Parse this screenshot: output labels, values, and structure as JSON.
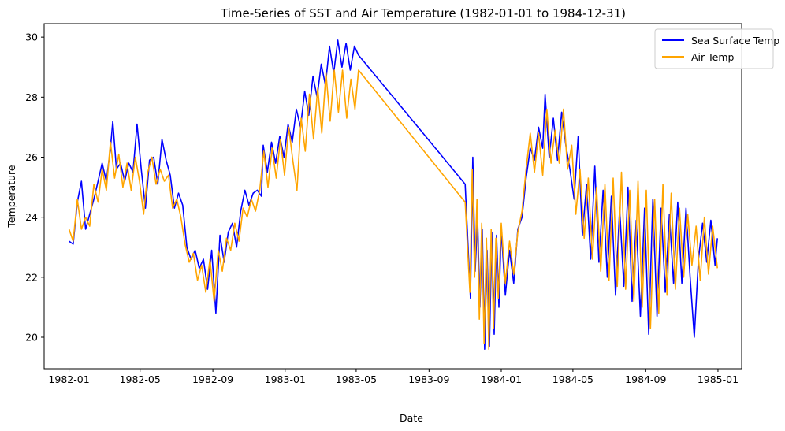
{
  "chart_data": {
    "type": "line",
    "title": "Time-Series of SST and Air Temperature (1982-01-01 to 1984-12-31)",
    "xlabel": "Date",
    "ylabel": "Temperature",
    "xlim": [
      "1981-11-20",
      "1985-02-10"
    ],
    "ylim": [
      18.95,
      30.45
    ],
    "x_ticks": [
      "1982-01",
      "1982-05",
      "1982-09",
      "1983-01",
      "1983-05",
      "1983-09",
      "1984-01",
      "1984-05",
      "1984-09",
      "1985-01"
    ],
    "y_ticks": [
      20,
      22,
      24,
      26,
      28,
      30
    ],
    "grid": false,
    "legend": "top-right",
    "series": [
      {
        "name": "Sea Surface Temp",
        "color": "#0000ff",
        "points": [
          [
            "1982-01-01",
            23.2
          ],
          [
            "1982-01-08",
            23.1
          ],
          [
            "1982-01-15",
            24.5
          ],
          [
            "1982-01-22",
            25.2
          ],
          [
            "1982-01-29",
            23.6
          ],
          [
            "1982-02-05",
            24.1
          ],
          [
            "1982-02-12",
            24.6
          ],
          [
            "1982-02-19",
            25.2
          ],
          [
            "1982-02-26",
            25.8
          ],
          [
            "1982-03-05",
            25.2
          ],
          [
            "1982-03-12",
            26.3
          ],
          [
            "1982-03-16",
            27.2
          ],
          [
            "1982-03-22",
            25.6
          ],
          [
            "1982-03-29",
            25.8
          ],
          [
            "1982-04-05",
            25.2
          ],
          [
            "1982-04-12",
            25.8
          ],
          [
            "1982-04-19",
            25.5
          ],
          [
            "1982-04-26",
            27.1
          ],
          [
            "1982-05-03",
            25.6
          ],
          [
            "1982-05-10",
            24.3
          ],
          [
            "1982-05-17",
            25.9
          ],
          [
            "1982-05-24",
            26.0
          ],
          [
            "1982-05-31",
            25.1
          ],
          [
            "1982-06-07",
            26.6
          ],
          [
            "1982-06-14",
            25.9
          ],
          [
            "1982-06-21",
            25.4
          ],
          [
            "1982-06-28",
            24.3
          ],
          [
            "1982-07-05",
            24.8
          ],
          [
            "1982-07-12",
            24.4
          ],
          [
            "1982-07-19",
            23.0
          ],
          [
            "1982-07-26",
            22.6
          ],
          [
            "1982-08-02",
            22.9
          ],
          [
            "1982-08-09",
            22.3
          ],
          [
            "1982-08-16",
            22.6
          ],
          [
            "1982-08-23",
            21.6
          ],
          [
            "1982-08-30",
            22.9
          ],
          [
            "1982-09-06",
            20.8
          ],
          [
            "1982-09-13",
            23.4
          ],
          [
            "1982-09-20",
            22.5
          ],
          [
            "1982-09-27",
            23.5
          ],
          [
            "1982-10-04",
            23.8
          ],
          [
            "1982-10-11",
            23.0
          ],
          [
            "1982-10-18",
            24.2
          ],
          [
            "1982-10-25",
            24.9
          ],
          [
            "1982-11-01",
            24.4
          ],
          [
            "1982-11-08",
            24.8
          ],
          [
            "1982-11-15",
            24.9
          ],
          [
            "1982-11-22",
            24.7
          ],
          [
            "1982-11-25",
            26.4
          ],
          [
            "1982-12-02",
            25.5
          ],
          [
            "1982-12-09",
            26.5
          ],
          [
            "1982-12-16",
            25.8
          ],
          [
            "1982-12-23",
            26.7
          ],
          [
            "1982-12-30",
            26.0
          ],
          [
            "1983-01-06",
            27.1
          ],
          [
            "1983-01-13",
            26.5
          ],
          [
            "1983-01-20",
            27.6
          ],
          [
            "1983-01-27",
            27.0
          ],
          [
            "1983-02-03",
            28.2
          ],
          [
            "1983-02-10",
            27.4
          ],
          [
            "1983-02-17",
            28.7
          ],
          [
            "1983-02-24",
            28.0
          ],
          [
            "1983-03-03",
            29.1
          ],
          [
            "1983-03-10",
            28.4
          ],
          [
            "1983-03-17",
            29.7
          ],
          [
            "1983-03-24",
            28.8
          ],
          [
            "1983-03-31",
            29.9
          ],
          [
            "1983-04-07",
            29.0
          ],
          [
            "1983-04-14",
            29.8
          ],
          [
            "1983-04-21",
            28.9
          ],
          [
            "1983-04-28",
            29.7
          ],
          [
            "1983-05-05",
            29.4
          ],
          [
            "1983-11-01",
            25.1
          ],
          [
            "1983-11-06",
            23.0
          ],
          [
            "1983-11-10",
            21.3
          ],
          [
            "1983-11-14",
            26.0
          ],
          [
            "1983-11-18",
            22.2
          ],
          [
            "1983-11-22",
            24.0
          ],
          [
            "1983-11-26",
            21.0
          ],
          [
            "1983-11-30",
            23.6
          ],
          [
            "1983-12-04",
            19.6
          ],
          [
            "1983-12-08",
            22.9
          ],
          [
            "1983-12-12",
            19.7
          ],
          [
            "1983-12-16",
            23.5
          ],
          [
            "1983-12-20",
            20.1
          ],
          [
            "1983-12-24",
            23.4
          ],
          [
            "1983-12-28",
            21.0
          ],
          [
            "1984-01-01",
            23.6
          ],
          [
            "1984-01-08",
            21.4
          ],
          [
            "1984-01-15",
            22.9
          ],
          [
            "1984-01-22",
            21.8
          ],
          [
            "1984-01-29",
            23.6
          ],
          [
            "1984-02-05",
            24.0
          ],
          [
            "1984-02-12",
            25.3
          ],
          [
            "1984-02-19",
            26.3
          ],
          [
            "1984-02-26",
            25.9
          ],
          [
            "1984-03-04",
            27.0
          ],
          [
            "1984-03-11",
            26.3
          ],
          [
            "1984-03-15",
            28.1
          ],
          [
            "1984-03-22",
            26.0
          ],
          [
            "1984-03-29",
            27.3
          ],
          [
            "1984-04-05",
            25.9
          ],
          [
            "1984-04-12",
            27.5
          ],
          [
            "1984-04-19",
            26.4
          ],
          [
            "1984-04-26",
            25.6
          ],
          [
            "1984-05-03",
            24.6
          ],
          [
            "1984-05-10",
            26.7
          ],
          [
            "1984-05-17",
            23.4
          ],
          [
            "1984-05-24",
            25.1
          ],
          [
            "1984-05-31",
            22.6
          ],
          [
            "1984-06-07",
            25.7
          ],
          [
            "1984-06-14",
            22.5
          ],
          [
            "1984-06-21",
            24.9
          ],
          [
            "1984-06-28",
            22.0
          ],
          [
            "1984-07-05",
            24.7
          ],
          [
            "1984-07-12",
            21.4
          ],
          [
            "1984-07-19",
            24.3
          ],
          [
            "1984-07-26",
            21.7
          ],
          [
            "1984-08-02",
            25.0
          ],
          [
            "1984-08-09",
            21.2
          ],
          [
            "1984-08-16",
            23.9
          ],
          [
            "1984-08-23",
            20.7
          ],
          [
            "1984-08-30",
            24.3
          ],
          [
            "1984-09-06",
            20.1
          ],
          [
            "1984-09-13",
            24.6
          ],
          [
            "1984-09-20",
            20.7
          ],
          [
            "1984-09-27",
            24.3
          ],
          [
            "1984-10-04",
            21.5
          ],
          [
            "1984-10-11",
            24.1
          ],
          [
            "1984-10-18",
            21.8
          ],
          [
            "1984-10-25",
            24.5
          ],
          [
            "1984-11-01",
            21.8
          ],
          [
            "1984-11-08",
            24.3
          ],
          [
            "1984-11-15",
            22.0
          ],
          [
            "1984-11-22",
            20.0
          ],
          [
            "1984-11-29",
            22.6
          ],
          [
            "1984-12-06",
            23.8
          ],
          [
            "1984-12-13",
            22.5
          ],
          [
            "1984-12-20",
            23.9
          ],
          [
            "1984-12-27",
            22.4
          ],
          [
            "1984-12-31",
            23.3
          ]
        ]
      },
      {
        "name": "Air Temp",
        "color": "#ffa500",
        "points": [
          [
            "1982-01-01",
            23.6
          ],
          [
            "1982-01-08",
            23.2
          ],
          [
            "1982-01-15",
            24.6
          ],
          [
            "1982-01-22",
            23.6
          ],
          [
            "1982-01-29",
            24.0
          ],
          [
            "1982-02-05",
            23.7
          ],
          [
            "1982-02-12",
            25.1
          ],
          [
            "1982-02-19",
            24.5
          ],
          [
            "1982-02-26",
            25.6
          ],
          [
            "1982-03-05",
            24.9
          ],
          [
            "1982-03-12",
            26.5
          ],
          [
            "1982-03-19",
            25.3
          ],
          [
            "1982-03-26",
            26.1
          ],
          [
            "1982-04-02",
            25.0
          ],
          [
            "1982-04-09",
            25.8
          ],
          [
            "1982-04-16",
            24.9
          ],
          [
            "1982-04-23",
            26.0
          ],
          [
            "1982-04-30",
            25.2
          ],
          [
            "1982-05-07",
            24.1
          ],
          [
            "1982-05-14",
            25.5
          ],
          [
            "1982-05-21",
            26.0
          ],
          [
            "1982-05-28",
            25.1
          ],
          [
            "1982-06-04",
            25.6
          ],
          [
            "1982-06-11",
            25.2
          ],
          [
            "1982-06-18",
            25.4
          ],
          [
            "1982-06-25",
            24.3
          ],
          [
            "1982-07-02",
            24.6
          ],
          [
            "1982-07-09",
            24.0
          ],
          [
            "1982-07-16",
            23.1
          ],
          [
            "1982-07-23",
            22.5
          ],
          [
            "1982-07-30",
            22.8
          ],
          [
            "1982-08-06",
            21.9
          ],
          [
            "1982-08-13",
            22.4
          ],
          [
            "1982-08-20",
            21.5
          ],
          [
            "1982-08-27",
            22.6
          ],
          [
            "1982-09-03",
            21.2
          ],
          [
            "1982-09-10",
            22.9
          ],
          [
            "1982-09-17",
            22.2
          ],
          [
            "1982-09-24",
            23.3
          ],
          [
            "1982-10-01",
            22.9
          ],
          [
            "1982-10-08",
            23.8
          ],
          [
            "1982-10-15",
            23.2
          ],
          [
            "1982-10-22",
            24.3
          ],
          [
            "1982-10-29",
            24.0
          ],
          [
            "1982-11-05",
            24.6
          ],
          [
            "1982-11-12",
            24.2
          ],
          [
            "1982-11-19",
            24.9
          ],
          [
            "1982-11-26",
            26.2
          ],
          [
            "1982-12-03",
            25.0
          ],
          [
            "1982-12-10",
            26.3
          ],
          [
            "1982-12-17",
            25.3
          ],
          [
            "1982-12-24",
            26.6
          ],
          [
            "1982-12-31",
            25.4
          ],
          [
            "1983-01-07",
            27.0
          ],
          [
            "1983-01-14",
            25.9
          ],
          [
            "1983-01-21",
            24.9
          ],
          [
            "1983-01-28",
            27.3
          ],
          [
            "1983-02-04",
            26.2
          ],
          [
            "1983-02-11",
            28.1
          ],
          [
            "1983-02-18",
            26.6
          ],
          [
            "1983-02-25",
            28.3
          ],
          [
            "1983-03-04",
            26.8
          ],
          [
            "1983-03-11",
            28.8
          ],
          [
            "1983-03-18",
            27.2
          ],
          [
            "1983-03-25",
            28.9
          ],
          [
            "1983-04-01",
            27.5
          ],
          [
            "1983-04-08",
            28.9
          ],
          [
            "1983-04-15",
            27.3
          ],
          [
            "1983-04-22",
            28.6
          ],
          [
            "1983-04-29",
            27.6
          ],
          [
            "1983-05-05",
            28.9
          ],
          [
            "1983-11-01",
            24.5
          ],
          [
            "1983-11-05",
            23.0
          ],
          [
            "1983-11-09",
            21.5
          ],
          [
            "1983-11-13",
            25.6
          ],
          [
            "1983-11-17",
            22.0
          ],
          [
            "1983-11-21",
            24.6
          ],
          [
            "1983-11-25",
            20.6
          ],
          [
            "1983-11-29",
            23.8
          ],
          [
            "1983-12-03",
            19.8
          ],
          [
            "1983-12-07",
            23.3
          ],
          [
            "1983-12-11",
            19.6
          ],
          [
            "1983-12-15",
            23.6
          ],
          [
            "1983-12-19",
            20.3
          ],
          [
            "1983-12-23",
            23.3
          ],
          [
            "1983-12-27",
            21.3
          ],
          [
            "1984-01-01",
            23.8
          ],
          [
            "1984-01-08",
            21.8
          ],
          [
            "1984-01-15",
            23.2
          ],
          [
            "1984-01-22",
            22.1
          ],
          [
            "1984-01-29",
            23.5
          ],
          [
            "1984-02-05",
            24.2
          ],
          [
            "1984-02-12",
            25.6
          ],
          [
            "1984-02-19",
            26.8
          ],
          [
            "1984-02-26",
            25.5
          ],
          [
            "1984-03-04",
            26.8
          ],
          [
            "1984-03-11",
            25.4
          ],
          [
            "1984-03-18",
            27.6
          ],
          [
            "1984-03-25",
            25.8
          ],
          [
            "1984-04-01",
            26.9
          ],
          [
            "1984-04-08",
            25.8
          ],
          [
            "1984-04-15",
            27.6
          ],
          [
            "1984-04-22",
            25.6
          ],
          [
            "1984-04-29",
            26.4
          ],
          [
            "1984-05-06",
            24.1
          ],
          [
            "1984-05-13",
            25.6
          ],
          [
            "1984-05-20",
            23.3
          ],
          [
            "1984-05-27",
            25.3
          ],
          [
            "1984-06-03",
            22.6
          ],
          [
            "1984-06-10",
            25.0
          ],
          [
            "1984-06-17",
            22.2
          ],
          [
            "1984-06-24",
            25.1
          ],
          [
            "1984-07-01",
            21.9
          ],
          [
            "1984-07-08",
            25.3
          ],
          [
            "1984-07-15",
            21.7
          ],
          [
            "1984-07-22",
            25.5
          ],
          [
            "1984-07-29",
            21.6
          ],
          [
            "1984-08-05",
            24.9
          ],
          [
            "1984-08-12",
            21.2
          ],
          [
            "1984-08-19",
            25.2
          ],
          [
            "1984-08-26",
            21.0
          ],
          [
            "1984-09-02",
            24.9
          ],
          [
            "1984-09-09",
            20.3
          ],
          [
            "1984-09-16",
            24.6
          ],
          [
            "1984-09-23",
            20.8
          ],
          [
            "1984-09-30",
            25.1
          ],
          [
            "1984-10-07",
            21.4
          ],
          [
            "1984-10-14",
            24.8
          ],
          [
            "1984-10-21",
            21.6
          ],
          [
            "1984-10-28",
            24.3
          ],
          [
            "1984-11-04",
            22.0
          ],
          [
            "1984-11-11",
            24.1
          ],
          [
            "1984-11-18",
            22.4
          ],
          [
            "1984-11-25",
            23.7
          ],
          [
            "1984-12-02",
            21.9
          ],
          [
            "1984-12-09",
            24.0
          ],
          [
            "1984-12-16",
            22.1
          ],
          [
            "1984-12-23",
            23.7
          ],
          [
            "1984-12-31",
            22.3
          ]
        ]
      }
    ]
  }
}
